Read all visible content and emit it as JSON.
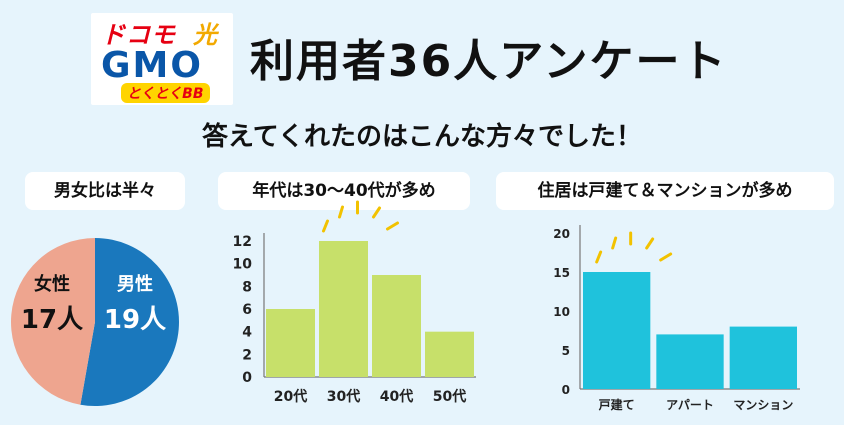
{
  "logo": {
    "docomo": "ドコモ",
    "hikari": "光",
    "gmo": "GMO",
    "tokutoku": "とくとくBB"
  },
  "title": "利用者36人アンケート",
  "subtitle": "答えてくれたのはこんな方々でした！",
  "colors": {
    "background": "#e6f4fc",
    "pie_female": "#eea58f",
    "pie_male": "#1a78bd",
    "age_bar": "#c7e06a",
    "housing_bar": "#1fc2dc",
    "accent_sparkle": "#f2c200"
  },
  "chart_data": [
    {
      "type": "pie",
      "title": "男女比は半々",
      "slices": [
        {
          "label": "女性",
          "value_label": "17人",
          "value": 17
        },
        {
          "label": "男性",
          "value_label": "19人",
          "value": 19
        }
      ]
    },
    {
      "type": "bar",
      "title": "年代は30〜40代が多め",
      "categories": [
        "20代",
        "30代",
        "40代",
        "50代"
      ],
      "values": [
        6,
        12,
        9,
        4
      ],
      "yticks": [
        0,
        2,
        4,
        6,
        8,
        10,
        12
      ],
      "ylim": [
        0,
        12
      ],
      "highlight": "30代"
    },
    {
      "type": "bar",
      "title": "住居は戸建て＆マンションが多め",
      "categories": [
        "戸建て",
        "アパート",
        "マンション"
      ],
      "values": [
        15,
        7,
        8
      ],
      "yticks": [
        0,
        5,
        10,
        15,
        20
      ],
      "ylim": [
        0,
        20
      ],
      "highlight": "戸建て"
    }
  ]
}
